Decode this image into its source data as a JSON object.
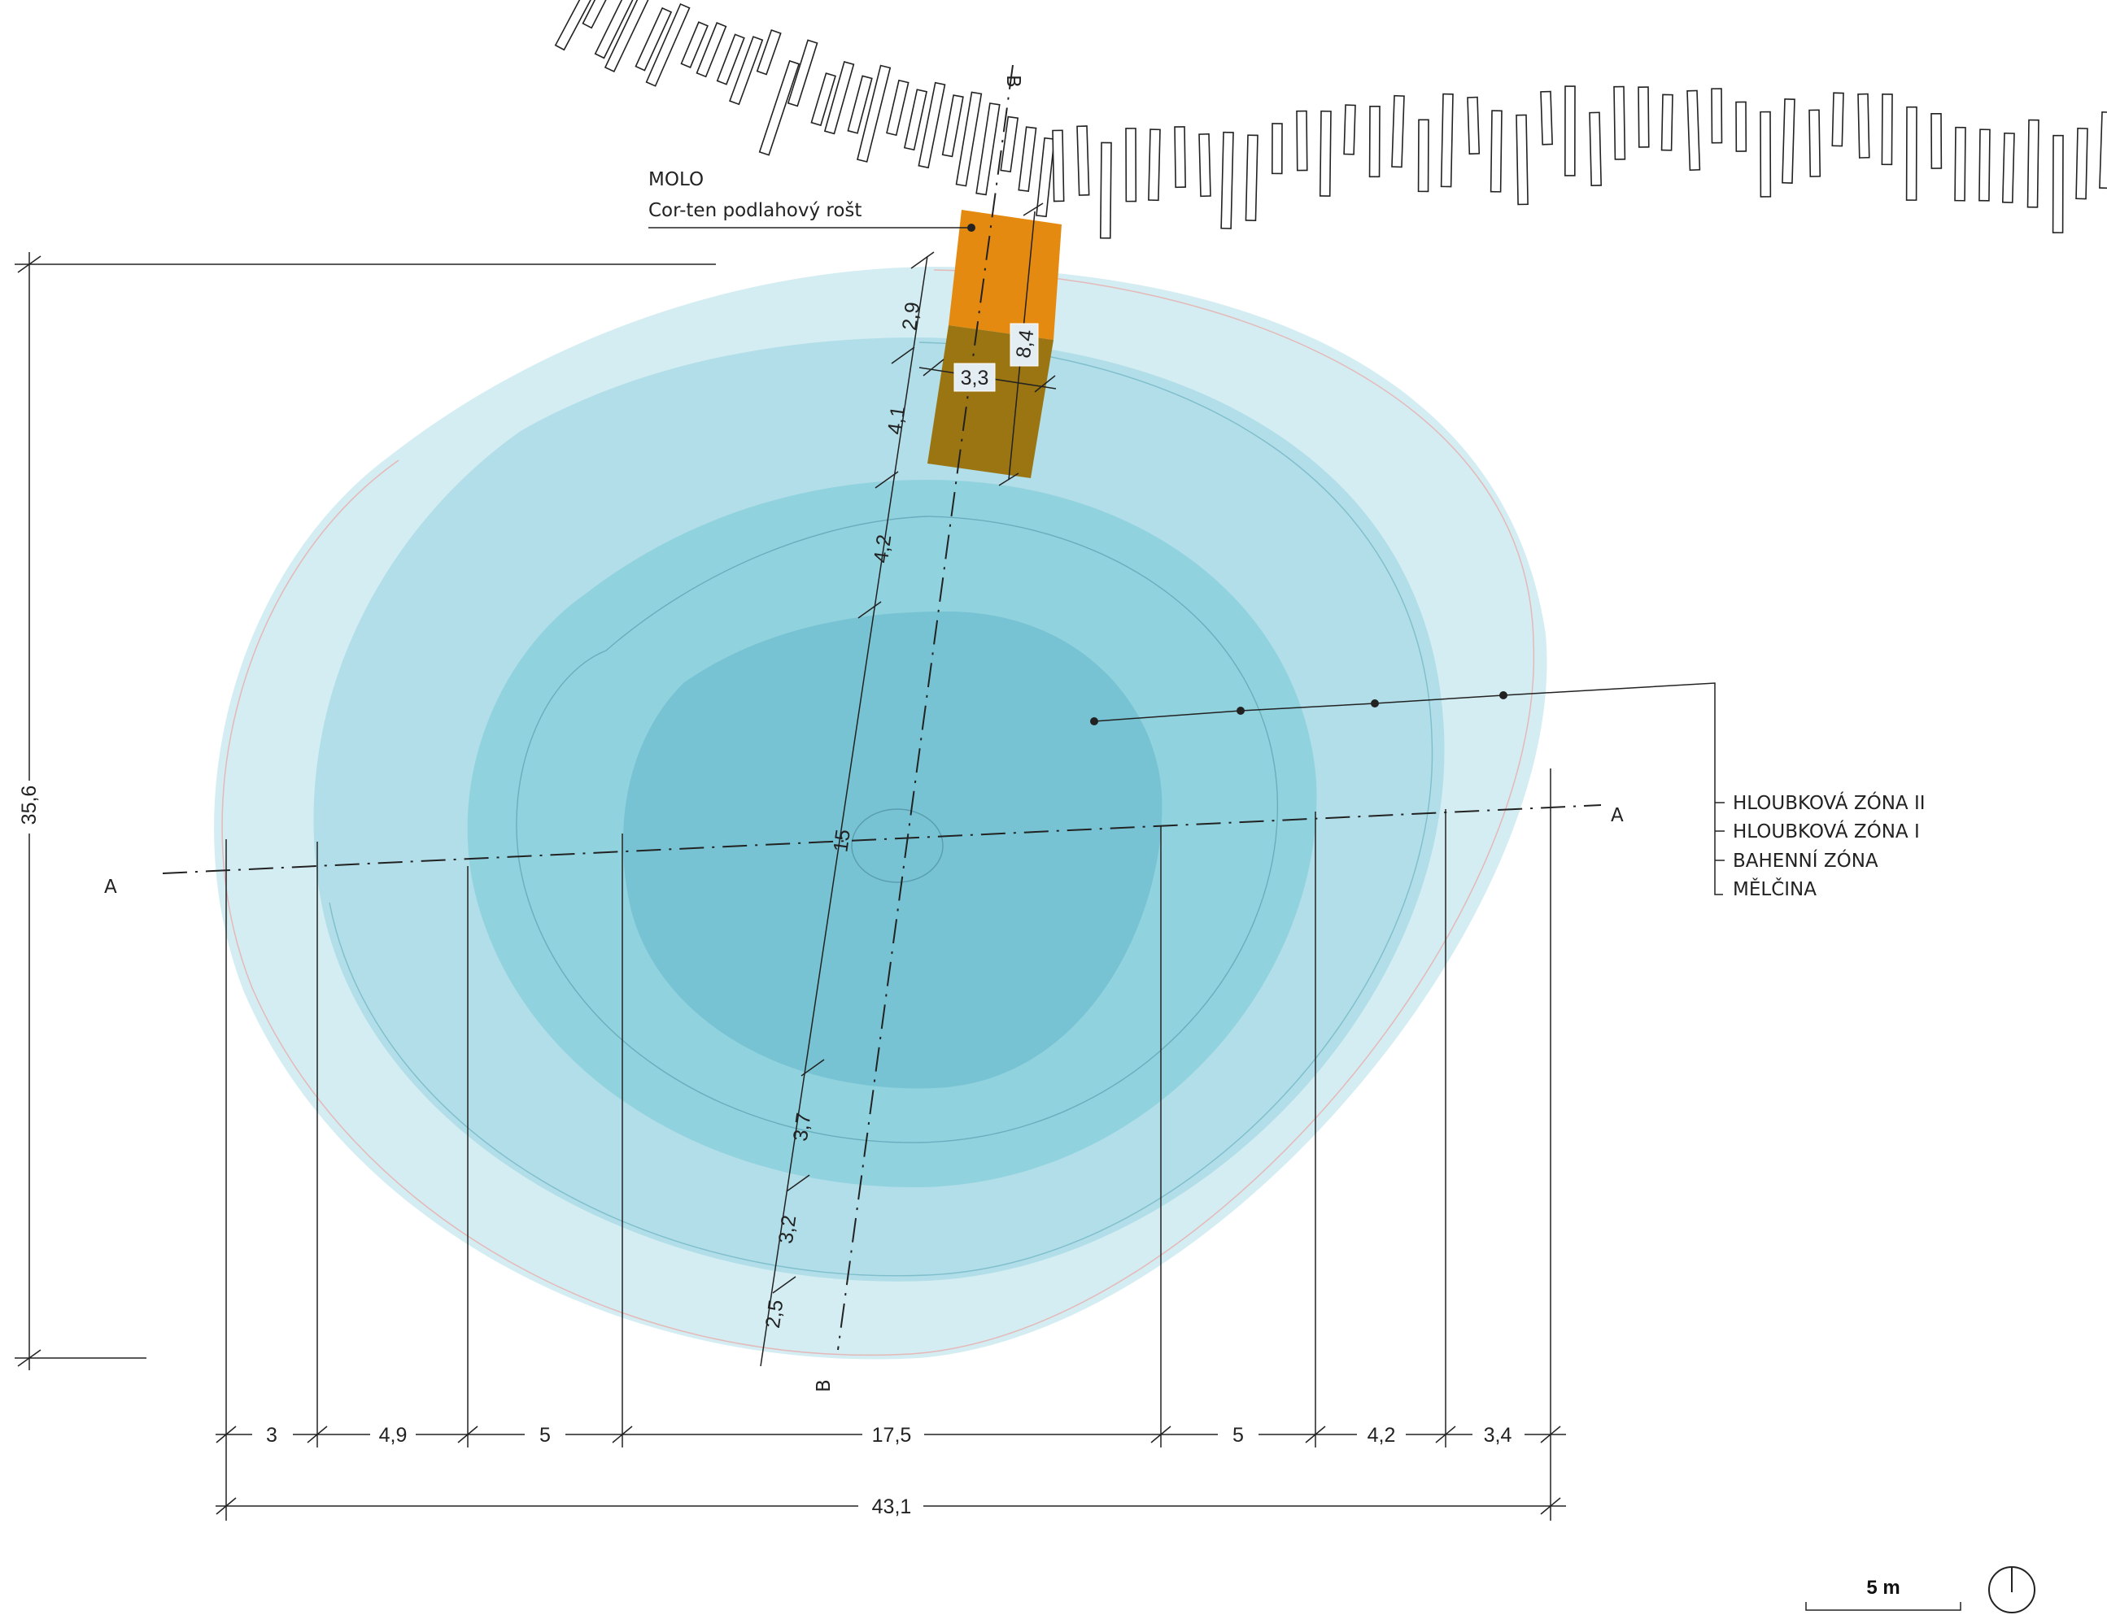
{
  "colors": {
    "zone_shallow": "#d2ecf1",
    "zone_mud": "#afdde7",
    "zone_depth1": "#8fd1de",
    "zone_depth2": "#76c2d2",
    "pier_top": "#e58a10",
    "pier_water": "#9a7512",
    "line": "#222222"
  },
  "pier": {
    "title": "MOLO",
    "subtitle": "Cor-ten podlahový rošt"
  },
  "zones": {
    "z1": "HLOUBKOVÁ ZÓNA II",
    "z2": "HLOUBKOVÁ ZÓNA I",
    "z3": "BAHENNÍ ZÓNA",
    "z4": "MĚLČINA"
  },
  "section_marks": {
    "a_left": "A",
    "a_right": "A",
    "b_top": "B",
    "b_bottom": "B"
  },
  "dims": {
    "height_total": "35,6",
    "width_total": "43,1",
    "center": "15",
    "pier_width": "3,3",
    "pier_length": "8,4",
    "horizontal": [
      "3",
      "4,9",
      "5",
      "17,5",
      "5",
      "4,2",
      "3,4"
    ],
    "axis_b": [
      "2,9",
      "4,1",
      "4,2",
      "3,7",
      "3,2",
      "2,5"
    ]
  },
  "scale_bar": {
    "label": "5 m"
  }
}
